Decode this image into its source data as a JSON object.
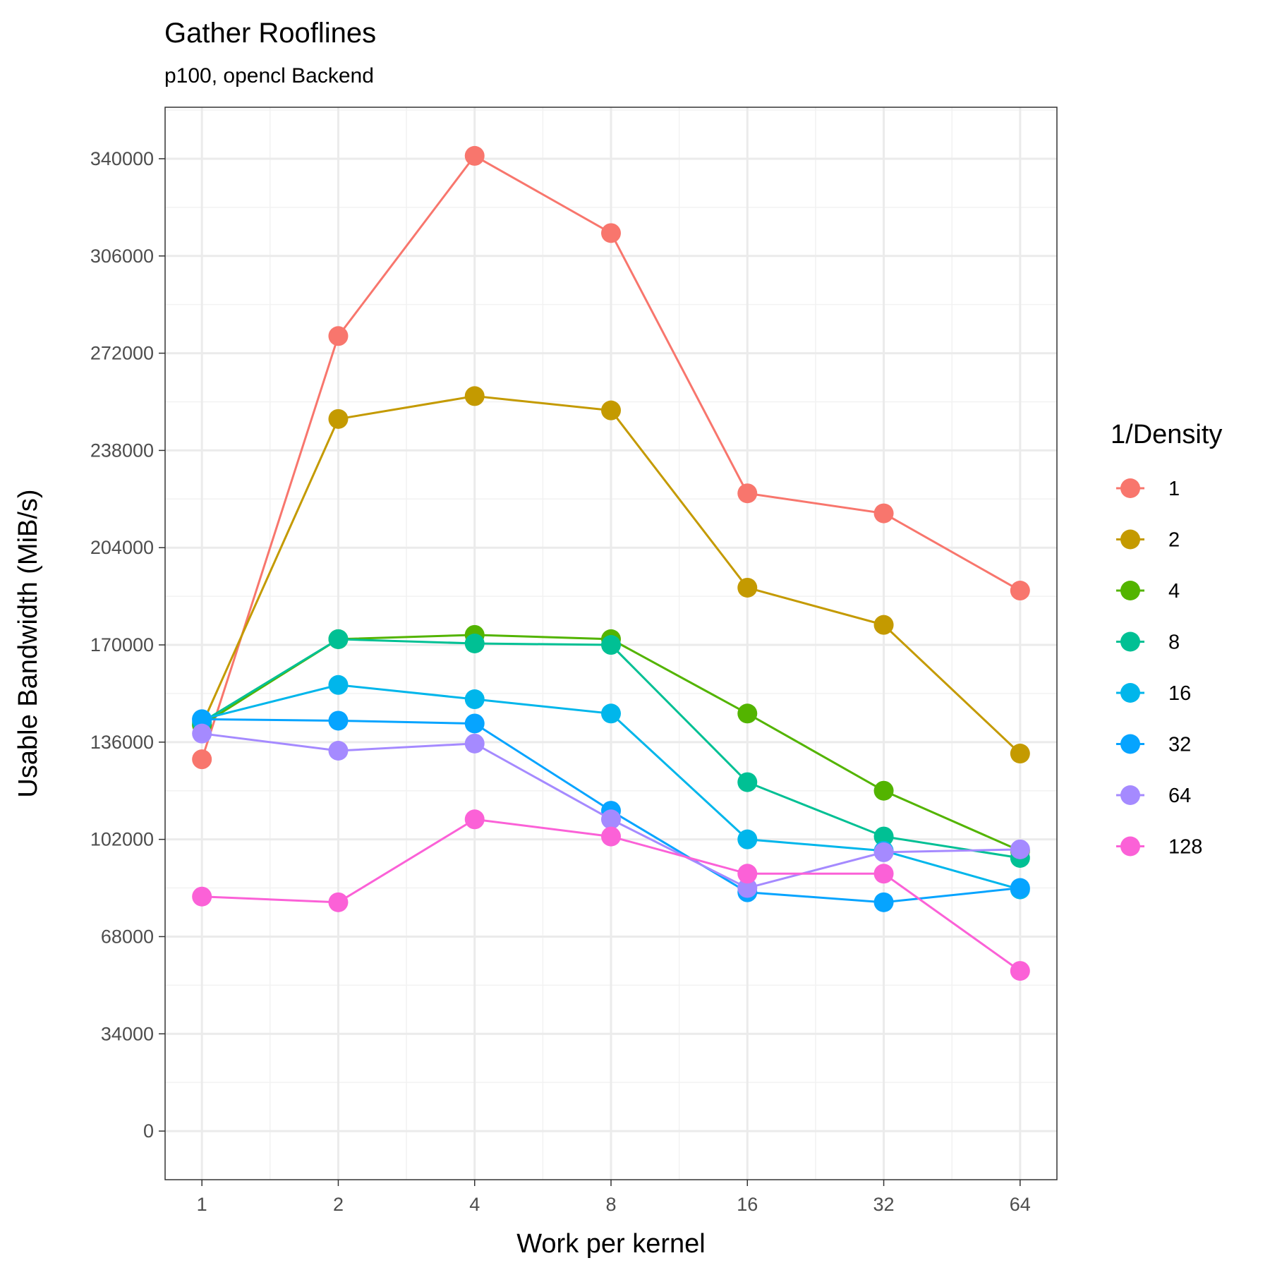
{
  "chart_data": {
    "type": "line",
    "title": "Gather Rooflines",
    "subtitle": "p100, opencl Backend",
    "xlabel": "Work per kernel",
    "ylabel": "Usable Bandwidth (MiB/s)",
    "x_scale": "log2",
    "x": [
      1,
      2,
      4,
      8,
      16,
      32,
      64
    ],
    "x_tick_labels": [
      "1",
      "2",
      "4",
      "8",
      "16",
      "32",
      "64"
    ],
    "y_ticks": [
      0,
      34000,
      68000,
      102000,
      136000,
      170000,
      204000,
      238000,
      272000,
      306000,
      340000
    ],
    "y_tick_labels": [
      "0",
      "34000",
      "68000",
      "102000",
      "136000",
      "170000",
      "204000",
      "238000",
      "272000",
      "306000",
      "340000"
    ],
    "ylim": [
      -17000,
      358000
    ],
    "grid": true,
    "legend": {
      "title": "1/Density",
      "position": "right"
    },
    "series": [
      {
        "name": "1",
        "color": "#F8766D",
        "values": [
          130000,
          278000,
          341000,
          314000,
          223000,
          216000,
          189000
        ]
      },
      {
        "name": "2",
        "color": "#C49A00",
        "values": [
          142000,
          249000,
          257000,
          252000,
          190000,
          177000,
          132000
        ]
      },
      {
        "name": "4",
        "color": "#53B400",
        "values": [
          142000,
          172000,
          173500,
          172000,
          146000,
          119000,
          98000
        ]
      },
      {
        "name": "8",
        "color": "#00C094",
        "values": [
          143000,
          172000,
          170500,
          170000,
          122000,
          103000,
          95500
        ]
      },
      {
        "name": "16",
        "color": "#00B6EB",
        "values": [
          144000,
          156000,
          151000,
          146000,
          102000,
          98000,
          84500
        ]
      },
      {
        "name": "32",
        "color": "#06A4FF",
        "values": [
          144000,
          143500,
          142500,
          112000,
          83500,
          80000,
          85000
        ]
      },
      {
        "name": "64",
        "color": "#A58AFF",
        "values": [
          139000,
          133000,
          135500,
          109000,
          85000,
          97500,
          98500
        ]
      },
      {
        "name": "128",
        "color": "#FB61D7",
        "values": [
          82000,
          80000,
          109000,
          103000,
          90000,
          90000,
          56000
        ]
      }
    ]
  }
}
